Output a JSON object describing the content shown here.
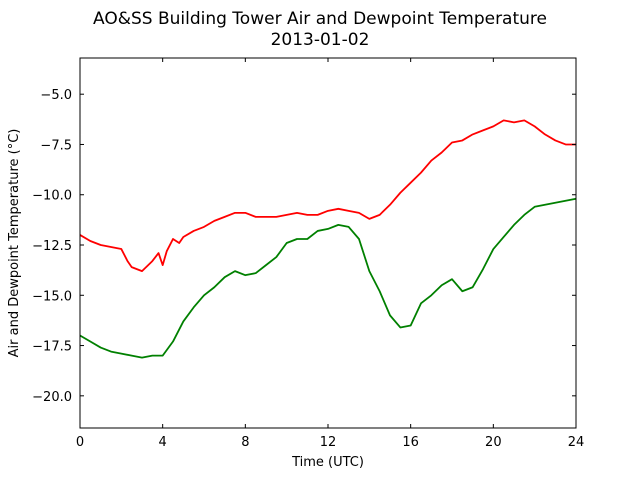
{
  "chart_data": {
    "type": "line",
    "title": "AO&SS Building Tower Air and Dewpoint Temperature",
    "subtitle": "2013-01-02",
    "xlabel": "Time (UTC)",
    "ylabel": "Air and Dewpoint Temperature (°C)",
    "xlim": [
      0,
      24
    ],
    "ylim": [
      -21.6,
      -3.2
    ],
    "xticks": [
      0,
      4,
      8,
      12,
      16,
      20,
      24
    ],
    "yticks": [
      -20.0,
      -17.5,
      -15.0,
      -12.5,
      -10.0,
      -7.5,
      -5.0
    ],
    "grid": false,
    "legend": "none",
    "series": [
      {
        "color": "#ff0000",
        "x": [
          0,
          0.5,
          1.0,
          1.5,
          2.0,
          2.3,
          2.5,
          3.0,
          3.2,
          3.5,
          3.8,
          4.0,
          4.2,
          4.5,
          4.8,
          5.0,
          5.5,
          6.0,
          6.5,
          7.0,
          7.5,
          8.0,
          8.5,
          9.0,
          9.5,
          10.0,
          10.5,
          11.0,
          11.5,
          12.0,
          12.5,
          13.0,
          13.5,
          14.0,
          14.5,
          15.0,
          15.5,
          16.0,
          16.5,
          17.0,
          17.5,
          18.0,
          18.5,
          19.0,
          19.5,
          20.0,
          20.5,
          21.0,
          21.5,
          22.0,
          22.5,
          23.0,
          23.5,
          24.0
        ],
        "values": [
          -12.0,
          -12.3,
          -12.5,
          -12.6,
          -12.7,
          -13.3,
          -13.6,
          -13.8,
          -13.6,
          -13.3,
          -12.9,
          -13.5,
          -12.8,
          -12.2,
          -12.4,
          -12.1,
          -11.8,
          -11.6,
          -11.3,
          -11.1,
          -10.9,
          -10.9,
          -11.1,
          -11.1,
          -11.1,
          -11.0,
          -10.9,
          -11.0,
          -11.0,
          -10.8,
          -10.7,
          -10.8,
          -10.9,
          -11.2,
          -11.0,
          -10.5,
          -9.9,
          -9.4,
          -8.9,
          -8.3,
          -7.9,
          -7.4,
          -7.3,
          -7.0,
          -6.8,
          -6.6,
          -6.3,
          -6.4,
          -6.3,
          -6.6,
          -7.0,
          -7.3,
          -7.5,
          -7.5
        ]
      },
      {
        "color": "#008000",
        "x": [
          0,
          0.5,
          1.0,
          1.5,
          2.0,
          2.5,
          3.0,
          3.5,
          4.0,
          4.5,
          5.0,
          5.5,
          6.0,
          6.5,
          7.0,
          7.5,
          8.0,
          8.5,
          9.0,
          9.5,
          10.0,
          10.5,
          11.0,
          11.5,
          12.0,
          12.5,
          13.0,
          13.5,
          14.0,
          14.5,
          15.0,
          15.5,
          16.0,
          16.5,
          17.0,
          17.5,
          18.0,
          18.5,
          19.0,
          19.5,
          20.0,
          20.5,
          21.0,
          21.5,
          22.0,
          22.5,
          23.0,
          23.5,
          24.0
        ],
        "values": [
          -17.0,
          -17.3,
          -17.6,
          -17.8,
          -17.9,
          -18.0,
          -18.1,
          -18.0,
          -18.0,
          -17.3,
          -16.3,
          -15.6,
          -15.0,
          -14.6,
          -14.1,
          -13.8,
          -14.0,
          -13.9,
          -13.5,
          -13.1,
          -12.4,
          -12.2,
          -12.2,
          -11.8,
          -11.7,
          -11.5,
          -11.6,
          -12.2,
          -13.8,
          -14.8,
          -16.0,
          -16.6,
          -16.5,
          -15.4,
          -15.0,
          -14.5,
          -14.2,
          -14.8,
          -14.6,
          -13.7,
          -12.7,
          -12.1,
          -11.5,
          -11.0,
          -10.6,
          -10.5,
          -10.4,
          -10.3,
          -10.2
        ]
      }
    ]
  }
}
